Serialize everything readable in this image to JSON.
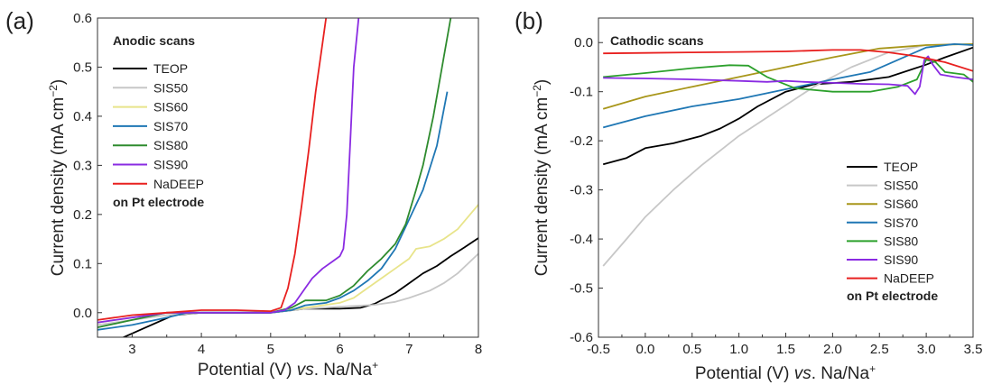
{
  "chart_data": [
    {
      "panel_label": "(a)",
      "type": "line",
      "annotation": "Anodic scans",
      "legend_note": "on Pt electrode",
      "xlabel_parts": [
        "Potential (V) ",
        "vs",
        ". Na/Na",
        "+"
      ],
      "ylabel": "Current density (mA cm",
      "ylabel_exp": "−2",
      "ylabel_close": ")",
      "xlim": [
        2.5,
        8
      ],
      "ylim": [
        -0.05,
        0.6
      ],
      "x_ticks": [
        3,
        4,
        5,
        6,
        7,
        8
      ],
      "x_tick_labels": [
        "3",
        "4",
        "5",
        "6",
        "7",
        "8"
      ],
      "y_ticks": [
        0.0,
        0.1,
        0.2,
        0.3,
        0.4,
        0.5,
        0.6
      ],
      "y_tick_labels": [
        "0.0",
        "0.1",
        "0.2",
        "0.3",
        "0.4",
        "0.5",
        "0.6"
      ],
      "grid": false,
      "legend_position": "top-left",
      "series": [
        {
          "name": "TEOP",
          "color": "#000000",
          "points": [
            [
              2.5,
              -0.07
            ],
            [
              2.8,
              -0.055
            ],
            [
              3.2,
              -0.03
            ],
            [
              3.6,
              -0.005
            ],
            [
              4.0,
              0.0
            ],
            [
              4.5,
              0.0
            ],
            [
              5.0,
              0.0
            ],
            [
              5.5,
              0.008
            ],
            [
              6.0,
              0.008
            ],
            [
              6.3,
              0.01
            ],
            [
              6.5,
              0.018
            ],
            [
              6.8,
              0.04
            ],
            [
              7.0,
              0.06
            ],
            [
              7.2,
              0.08
            ],
            [
              7.4,
              0.095
            ],
            [
              7.6,
              0.115
            ],
            [
              7.8,
              0.133
            ],
            [
              8.0,
              0.152
            ]
          ]
        },
        {
          "name": "SIS50",
          "color": "#c7c7c7",
          "points": [
            [
              2.5,
              -0.025
            ],
            [
              3.0,
              -0.015
            ],
            [
              3.5,
              -0.005
            ],
            [
              4.0,
              0.0
            ],
            [
              4.5,
              0.0
            ],
            [
              5.0,
              0.0
            ],
            [
              5.5,
              0.008
            ],
            [
              6.0,
              0.012
            ],
            [
              6.5,
              0.016
            ],
            [
              6.8,
              0.022
            ],
            [
              7.0,
              0.03
            ],
            [
              7.3,
              0.045
            ],
            [
              7.5,
              0.06
            ],
            [
              7.7,
              0.08
            ],
            [
              8.0,
              0.12
            ]
          ]
        },
        {
          "name": "SIS60",
          "color": "#e8e48a",
          "points": [
            [
              2.5,
              -0.02
            ],
            [
              3.0,
              -0.01
            ],
            [
              3.5,
              0.0
            ],
            [
              4.0,
              0.0
            ],
            [
              4.5,
              0.0
            ],
            [
              5.0,
              0.0
            ],
            [
              5.5,
              0.01
            ],
            [
              6.0,
              0.02
            ],
            [
              6.2,
              0.03
            ],
            [
              6.4,
              0.05
            ],
            [
              6.6,
              0.07
            ],
            [
              6.8,
              0.09
            ],
            [
              7.0,
              0.11
            ],
            [
              7.1,
              0.13
            ],
            [
              7.3,
              0.135
            ],
            [
              7.5,
              0.15
            ],
            [
              7.7,
              0.17
            ],
            [
              7.85,
              0.195
            ],
            [
              8.0,
              0.22
            ]
          ]
        },
        {
          "name": "SIS70",
          "color": "#1f77b4",
          "points": [
            [
              2.5,
              -0.035
            ],
            [
              3.0,
              -0.025
            ],
            [
              3.5,
              -0.01
            ],
            [
              3.8,
              0.0
            ],
            [
              4.5,
              0.0
            ],
            [
              5.0,
              0.0
            ],
            [
              5.3,
              0.005
            ],
            [
              5.5,
              0.015
            ],
            [
              5.8,
              0.02
            ],
            [
              6.0,
              0.03
            ],
            [
              6.2,
              0.045
            ],
            [
              6.4,
              0.065
            ],
            [
              6.6,
              0.09
            ],
            [
              6.8,
              0.13
            ],
            [
              7.0,
              0.19
            ],
            [
              7.2,
              0.25
            ],
            [
              7.4,
              0.34
            ],
            [
              7.55,
              0.45
            ]
          ]
        },
        {
          "name": "SIS80",
          "color": "#2e8b2e",
          "points": [
            [
              2.5,
              -0.03
            ],
            [
              3.0,
              -0.015
            ],
            [
              3.5,
              0.0
            ],
            [
              4.0,
              0.0
            ],
            [
              4.5,
              0.0
            ],
            [
              5.0,
              0.0
            ],
            [
              5.3,
              0.01
            ],
            [
              5.5,
              0.025
            ],
            [
              5.8,
              0.025
            ],
            [
              6.0,
              0.035
            ],
            [
              6.2,
              0.055
            ],
            [
              6.4,
              0.085
            ],
            [
              6.6,
              0.11
            ],
            [
              6.8,
              0.14
            ],
            [
              6.95,
              0.18
            ],
            [
              7.1,
              0.25
            ],
            [
              7.2,
              0.3
            ],
            [
              7.35,
              0.4
            ],
            [
              7.5,
              0.52
            ],
            [
              7.6,
              0.6
            ]
          ]
        },
        {
          "name": "SIS90",
          "color": "#8a2be2",
          "points": [
            [
              2.5,
              -0.02
            ],
            [
              3.0,
              -0.01
            ],
            [
              3.5,
              0.0
            ],
            [
              4.0,
              0.0
            ],
            [
              4.5,
              0.0
            ],
            [
              5.0,
              0.0
            ],
            [
              5.2,
              0.005
            ],
            [
              5.35,
              0.02
            ],
            [
              5.5,
              0.05
            ],
            [
              5.6,
              0.07
            ],
            [
              5.75,
              0.09
            ],
            [
              5.9,
              0.105
            ],
            [
              6.0,
              0.115
            ],
            [
              6.05,
              0.13
            ],
            [
              6.1,
              0.2
            ],
            [
              6.15,
              0.35
            ],
            [
              6.2,
              0.5
            ],
            [
              6.27,
              0.6
            ]
          ]
        },
        {
          "name": "NaDEEP",
          "color": "#e8201f",
          "points": [
            [
              2.5,
              -0.015
            ],
            [
              3.0,
              -0.005
            ],
            [
              3.5,
              0.0
            ],
            [
              4.0,
              0.005
            ],
            [
              4.5,
              0.005
            ],
            [
              5.0,
              0.003
            ],
            [
              5.15,
              0.01
            ],
            [
              5.25,
              0.05
            ],
            [
              5.35,
              0.12
            ],
            [
              5.45,
              0.22
            ],
            [
              5.55,
              0.33
            ],
            [
              5.65,
              0.45
            ],
            [
              5.75,
              0.55
            ],
            [
              5.8,
              0.6
            ]
          ]
        }
      ]
    },
    {
      "panel_label": "(b)",
      "type": "line",
      "annotation": "Cathodic scans",
      "legend_note": "on Pt electrode",
      "xlabel_parts": [
        "Potential (V) ",
        "vs",
        ". Na/Na",
        "+"
      ],
      "ylabel": "Current density (mA cm",
      "ylabel_exp": "−2",
      "ylabel_close": ")",
      "xlim": [
        -0.5,
        3.5
      ],
      "ylim": [
        -0.6,
        0.05
      ],
      "x_ticks": [
        -0.5,
        0.0,
        0.5,
        1.0,
        1.5,
        2.0,
        2.5,
        3.0,
        3.5
      ],
      "x_tick_labels": [
        "-0.5",
        "0.0",
        "0.5",
        "1.0",
        "1.5",
        "2.0",
        "2.5",
        "3.0",
        "3.5"
      ],
      "y_ticks": [
        0.0,
        -0.1,
        -0.2,
        -0.3,
        -0.4,
        -0.5,
        -0.6
      ],
      "y_tick_labels": [
        "0.0",
        "-0.1",
        "-0.2",
        "-0.3",
        "-0.4",
        "-0.5",
        "-0.6"
      ],
      "grid": false,
      "legend_position": "bottom-right",
      "series": [
        {
          "name": "TEOP",
          "color": "#000000",
          "points": [
            [
              -0.45,
              -0.248
            ],
            [
              -0.2,
              -0.235
            ],
            [
              0.0,
              -0.215
            ],
            [
              0.3,
              -0.205
            ],
            [
              0.6,
              -0.19
            ],
            [
              0.8,
              -0.175
            ],
            [
              1.0,
              -0.155
            ],
            [
              1.2,
              -0.13
            ],
            [
              1.5,
              -0.1
            ],
            [
              1.8,
              -0.085
            ],
            [
              2.2,
              -0.08
            ],
            [
              2.6,
              -0.07
            ],
            [
              3.0,
              -0.045
            ],
            [
              3.2,
              -0.03
            ],
            [
              3.5,
              -0.01
            ]
          ]
        },
        {
          "name": "SIS50",
          "color": "#c7c7c7",
          "points": [
            [
              -0.45,
              -0.455
            ],
            [
              -0.2,
              -0.4
            ],
            [
              0.0,
              -0.355
            ],
            [
              0.3,
              -0.3
            ],
            [
              0.6,
              -0.25
            ],
            [
              1.0,
              -0.19
            ],
            [
              1.4,
              -0.14
            ],
            [
              1.8,
              -0.09
            ],
            [
              2.2,
              -0.05
            ],
            [
              2.6,
              -0.02
            ],
            [
              3.0,
              -0.005
            ],
            [
              3.3,
              -0.003
            ],
            [
              3.5,
              -0.005
            ]
          ]
        },
        {
          "name": "SIS60",
          "color": "#a8961a",
          "points": [
            [
              -0.45,
              -0.135
            ],
            [
              0.0,
              -0.11
            ],
            [
              0.5,
              -0.09
            ],
            [
              1.0,
              -0.07
            ],
            [
              1.5,
              -0.05
            ],
            [
              2.0,
              -0.03
            ],
            [
              2.5,
              -0.012
            ],
            [
              3.0,
              -0.005
            ],
            [
              3.5,
              -0.003
            ]
          ]
        },
        {
          "name": "SIS70",
          "color": "#1f77b4",
          "points": [
            [
              -0.45,
              -0.173
            ],
            [
              0.0,
              -0.15
            ],
            [
              0.5,
              -0.13
            ],
            [
              1.0,
              -0.115
            ],
            [
              1.5,
              -0.095
            ],
            [
              2.0,
              -0.075
            ],
            [
              2.4,
              -0.06
            ],
            [
              2.7,
              -0.035
            ],
            [
              3.0,
              -0.01
            ],
            [
              3.3,
              -0.003
            ],
            [
              3.5,
              -0.005
            ]
          ]
        },
        {
          "name": "SIS80",
          "color": "#2ca02c",
          "points": [
            [
              -0.45,
              -0.07
            ],
            [
              0.0,
              -0.062
            ],
            [
              0.5,
              -0.052
            ],
            [
              0.9,
              -0.046
            ],
            [
              1.1,
              -0.047
            ],
            [
              1.3,
              -0.07
            ],
            [
              1.6,
              -0.093
            ],
            [
              2.0,
              -0.1
            ],
            [
              2.4,
              -0.1
            ],
            [
              2.7,
              -0.09
            ],
            [
              2.9,
              -0.075
            ],
            [
              3.0,
              -0.035
            ],
            [
              3.1,
              -0.04
            ],
            [
              3.2,
              -0.06
            ],
            [
              3.4,
              -0.065
            ],
            [
              3.5,
              -0.08
            ]
          ]
        },
        {
          "name": "SIS90",
          "color": "#8a2be2",
          "points": [
            [
              -0.45,
              -0.072
            ],
            [
              0.0,
              -0.073
            ],
            [
              0.5,
              -0.075
            ],
            [
              1.0,
              -0.078
            ],
            [
              1.3,
              -0.08
            ],
            [
              1.5,
              -0.078
            ],
            [
              1.7,
              -0.08
            ],
            [
              2.0,
              -0.082
            ],
            [
              2.3,
              -0.084
            ],
            [
              2.6,
              -0.085
            ],
            [
              2.8,
              -0.088
            ],
            [
              2.88,
              -0.105
            ],
            [
              2.93,
              -0.09
            ],
            [
              2.98,
              -0.035
            ],
            [
              3.02,
              -0.028
            ],
            [
              3.07,
              -0.045
            ],
            [
              3.15,
              -0.065
            ],
            [
              3.3,
              -0.07
            ],
            [
              3.5,
              -0.075
            ]
          ]
        },
        {
          "name": "NaDEEP",
          "color": "#e8201f",
          "points": [
            [
              -0.45,
              -0.022
            ],
            [
              0.0,
              -0.021
            ],
            [
              0.5,
              -0.02
            ],
            [
              1.0,
              -0.019
            ],
            [
              1.5,
              -0.018
            ],
            [
              2.0,
              -0.015
            ],
            [
              2.3,
              -0.015
            ],
            [
              2.6,
              -0.02
            ],
            [
              2.9,
              -0.028
            ],
            [
              3.2,
              -0.04
            ],
            [
              3.5,
              -0.058
            ]
          ]
        }
      ]
    }
  ]
}
